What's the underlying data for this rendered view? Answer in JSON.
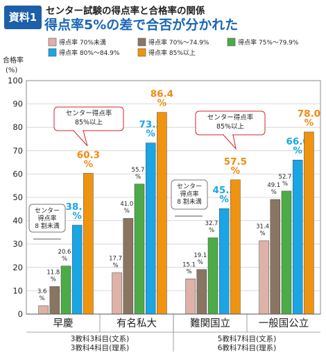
{
  "header": {
    "badge": "資料1",
    "title": "センター試験の得点率と合格率の関係",
    "subtitle": "得点率5%の差で合否が分かれた"
  },
  "colors": {
    "s1": "#deb2a8",
    "s2": "#8a7562",
    "s3": "#4dab47",
    "s4": "#1aa5e5",
    "s5": "#f0940f",
    "grid": "#cfcfcf",
    "value_blue": "#1aa5e5",
    "value_orange": "#f08a11",
    "callout_red": "#d4232b"
  },
  "chart_data": {
    "type": "bar",
    "ylabel": "合格率",
    "yunit": "(%)",
    "ylim": [
      0,
      100
    ],
    "yticks": [
      0,
      10,
      20,
      30,
      40,
      50,
      60,
      70,
      80,
      90,
      100
    ],
    "grid": true,
    "legend_position": "top",
    "categories": [
      "早慶",
      "有名私大",
      "難関国立",
      "一般国公立"
    ],
    "subject_notes": [
      {
        "lines": [
          "3教科3科目(文系)",
          "3教科4科目(理系)"
        ]
      },
      {
        "lines": [
          "5教科7科目(文系)",
          "6教科7科目(理系)"
        ]
      }
    ],
    "series": [
      {
        "name": "得点率 70%未満",
        "values": [
          3.6,
          17.7,
          15.1,
          31.4
        ]
      },
      {
        "name": "得点率 70%～74.9%",
        "values": [
          11.8,
          41.0,
          19.1,
          49.1
        ]
      },
      {
        "name": "得点率 75%～79.9%",
        "values": [
          20.6,
          55.7,
          32.7,
          52.7
        ]
      },
      {
        "name": "得点率 80%～84.9%",
        "values": [
          38.1,
          73.3,
          45.2,
          66.0
        ]
      },
      {
        "name": "得点率 85%以上",
        "values": [
          60.3,
          86.4,
          57.5,
          78.0
        ]
      }
    ],
    "value_labels": [
      [
        "3.6\n%",
        "11.8\n%",
        "20.6\n%",
        "38.1\n%",
        "60.3\n%"
      ],
      [
        "17.7\n%",
        "41.0\n%",
        "55.7\n%",
        "73.3\n%",
        "86.4\n%"
      ],
      [
        "15.1\n%",
        "19.1\n%",
        "32.7\n%",
        "45.2\n%",
        "57.5\n%"
      ],
      [
        "31.4\n%",
        "49.1\n%",
        "52.7\n%",
        "66.0\n%",
        "78.0\n%"
      ]
    ],
    "annotations": [
      {
        "group": 0,
        "lines": [
          "センター",
          "得点率",
          "8 割未満"
        ],
        "style": "gray"
      },
      {
        "group": 0,
        "lines": [
          "センター得点率",
          "85%以上"
        ],
        "style": "red"
      },
      {
        "group": 2,
        "lines": [
          "センター",
          "得点率",
          "8 割未満"
        ],
        "style": "gray"
      },
      {
        "group": 2,
        "lines": [
          "センター得点率",
          "85%以上"
        ],
        "style": "red"
      }
    ]
  }
}
